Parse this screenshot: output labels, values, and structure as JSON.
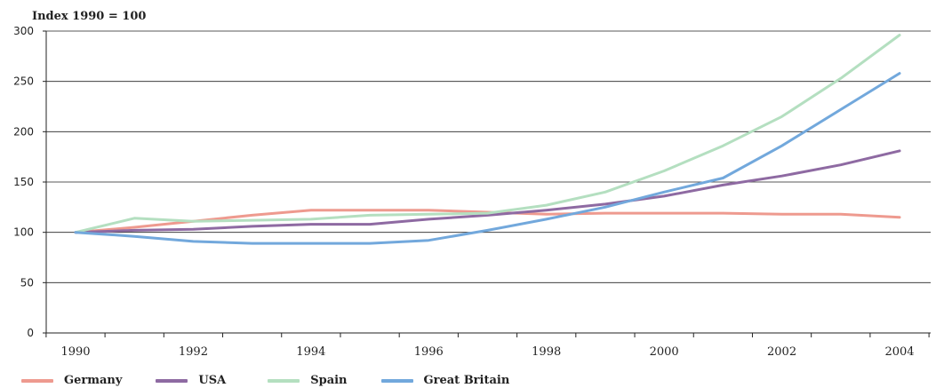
{
  "chart_data": {
    "type": "line",
    "title": "",
    "ylabel": "Index 1990 = 100",
    "xlabel": "",
    "x": [
      1990,
      1991,
      1992,
      1993,
      1994,
      1995,
      1996,
      1997,
      1998,
      1999,
      2000,
      2001,
      2002,
      2003,
      2004
    ],
    "x_tick_labels": [
      "1990",
      "1992",
      "1994",
      "1996",
      "1998",
      "2000",
      "2002",
      "2004"
    ],
    "y_tick_labels": [
      "0",
      "50",
      "100",
      "150",
      "200",
      "250",
      "300"
    ],
    "ylim": [
      0,
      300
    ],
    "grid": "horizontal",
    "legend_position": "bottom",
    "series": [
      {
        "name": "Germany",
        "color": "#ee9a8f",
        "values": [
          100,
          105,
          111,
          117,
          122,
          122,
          122,
          120,
          118,
          119,
          119,
          119,
          118,
          118,
          115
        ]
      },
      {
        "name": "USA",
        "color": "#8e6aa2",
        "values": [
          100,
          102,
          103,
          106,
          108,
          108,
          113,
          117,
          122,
          128,
          136,
          147,
          156,
          167,
          181
        ]
      },
      {
        "name": "Spain",
        "color": "#b4dfc0",
        "values": [
          100,
          114,
          111,
          112,
          113,
          117,
          118,
          119,
          127,
          140,
          161,
          186,
          215,
          253,
          296
        ]
      },
      {
        "name": "Great Britain",
        "color": "#72a8dc",
        "values": [
          100,
          96,
          91,
          89,
          89,
          89,
          92,
          102,
          113,
          125,
          140,
          154,
          186,
          222,
          258
        ]
      }
    ]
  }
}
